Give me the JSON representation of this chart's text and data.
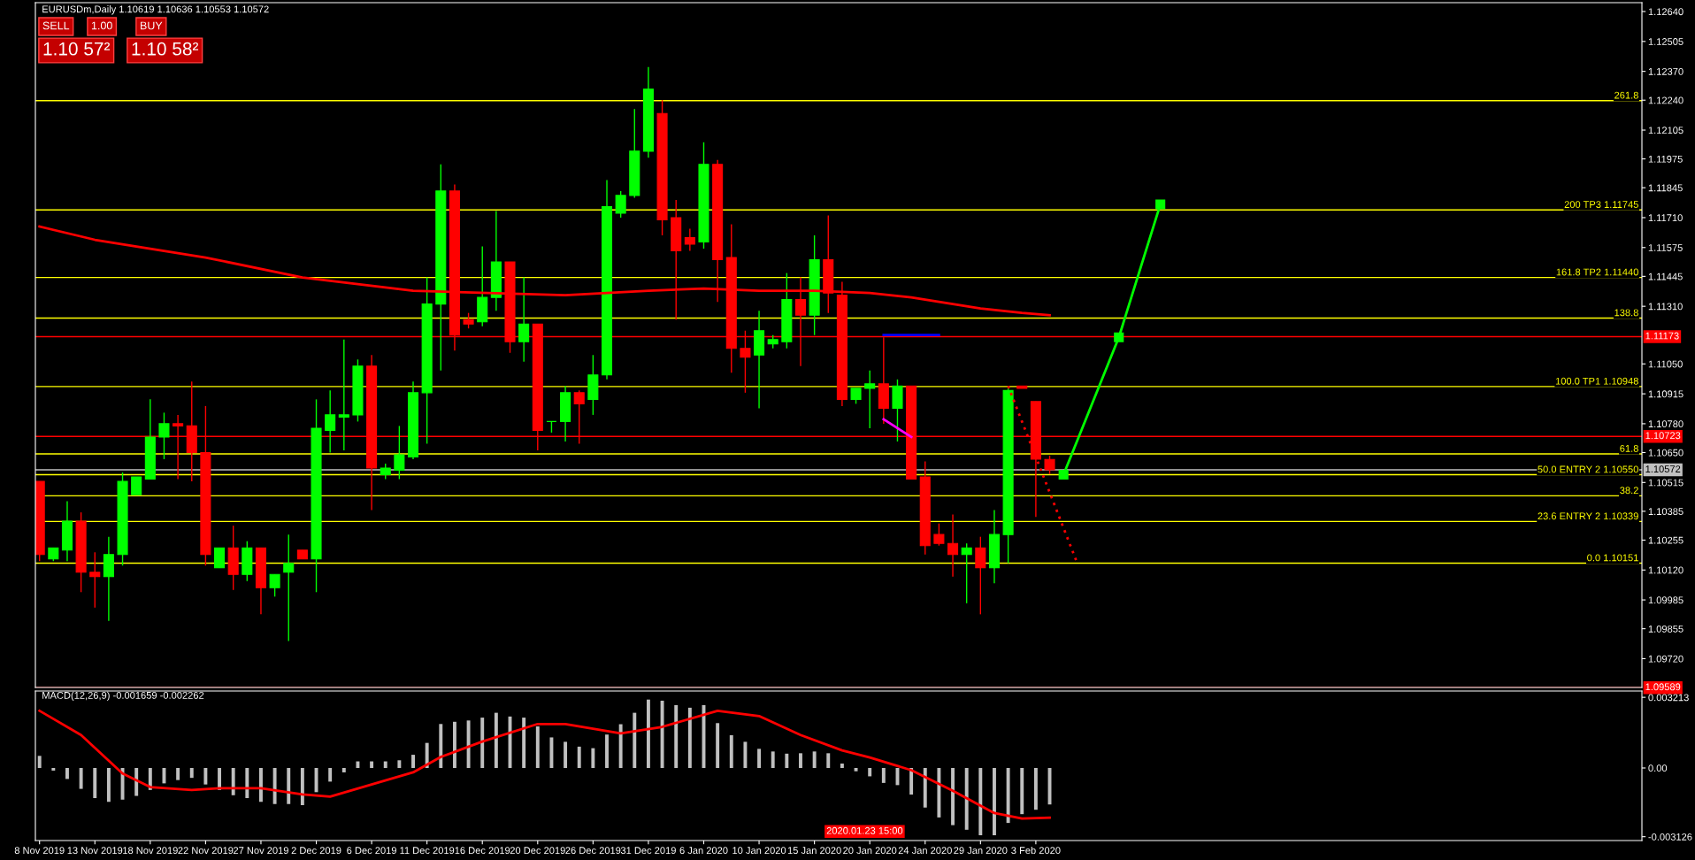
{
  "chart_data": [
    {
      "type": "candlestick",
      "title": "EURUSDm,Daily 1.10619 1.10636 1.10553 1.10572",
      "categories": [
        null,
        null,
        null,
        null,
        null,
        null,
        null,
        null,
        null,
        null,
        null,
        null,
        null,
        null,
        null,
        null,
        null,
        null,
        null,
        null,
        null,
        null,
        null,
        null,
        null,
        null,
        null,
        null,
        null,
        null,
        null,
        null,
        null,
        null,
        null,
        null,
        null,
        null,
        null,
        null,
        null,
        null,
        null,
        null,
        null,
        null,
        null,
        null,
        null,
        null,
        null,
        null,
        null,
        null,
        null,
        null,
        null,
        null,
        null,
        null,
        null,
        null,
        null,
        null,
        null,
        null,
        null,
        null,
        null,
        null,
        null,
        null,
        null,
        null,
        null,
        null,
        null,
        null,
        null,
        null,
        null,
        null,
        null,
        null,
        null,
        null,
        null,
        null,
        null,
        null,
        null,
        null,
        null,
        null,
        null,
        null,
        null,
        null,
        null,
        null,
        null,
        null,
        null,
        null,
        null,
        null,
        null,
        null,
        null,
        null,
        null,
        null,
        null,
        null,
        null,
        null
      ],
      "ohlc": [
        [
          1.1052,
          1.1052,
          1.1016,
          1.1019
        ],
        [
          1.1017,
          1.1022,
          1.1016,
          1.1022
        ],
        [
          1.1021,
          1.1043,
          1.1016,
          1.1034
        ],
        [
          1.1034,
          1.1038,
          1.1002,
          1.1011
        ],
        [
          1.1011,
          1.102,
          1.0995,
          1.1009
        ],
        [
          1.1009,
          1.1027,
          1.0989,
          1.1019
        ],
        [
          1.1019,
          1.1056,
          1.1014,
          1.1052
        ],
        [
          1.1046,
          1.1054,
          1.1046,
          1.1054
        ],
        [
          1.1053,
          1.1089,
          1.1053,
          1.1072
        ],
        [
          1.1072,
          1.1083,
          1.1062,
          1.1078
        ],
        [
          1.1078,
          1.1082,
          1.1053,
          1.1077
        ],
        [
          1.1077,
          1.1097,
          1.1052,
          1.1065
        ],
        [
          1.1065,
          1.1086,
          1.1014,
          1.1019
        ],
        [
          1.1013,
          1.1022,
          1.1013,
          1.1022
        ],
        [
          1.1022,
          1.1032,
          1.1003,
          1.101
        ],
        [
          1.101,
          1.1025,
          1.1007,
          1.1022
        ],
        [
          1.1022,
          1.1022,
          1.0992,
          1.1004
        ],
        [
          1.1004,
          1.101,
          1.1,
          1.101
        ],
        [
          1.1011,
          1.1028,
          1.098,
          1.1015
        ],
        [
          1.1021,
          1.1021,
          1.1017,
          1.1017
        ],
        [
          1.1017,
          1.1089,
          1.1002,
          1.1076
        ],
        [
          1.1075,
          1.1093,
          1.1065,
          1.1082
        ],
        [
          1.1081,
          1.1116,
          1.1066,
          1.1082
        ],
        [
          1.1082,
          1.1107,
          1.1079,
          1.1104
        ],
        [
          1.1104,
          1.1109,
          1.1039,
          1.1058
        ],
        [
          1.1055,
          1.106,
          1.1053,
          1.1058
        ],
        [
          1.1057,
          1.1077,
          1.1053,
          1.1064
        ],
        [
          1.1063,
          1.1097,
          1.1062,
          1.1092
        ],
        [
          1.1092,
          1.1144,
          1.1069,
          1.1132
        ],
        [
          1.1132,
          1.1195,
          1.1102,
          1.1183
        ],
        [
          1.1183,
          1.1186,
          1.1111,
          1.1118
        ],
        [
          1.1125,
          1.1128,
          1.1121,
          1.1123
        ],
        [
          1.1124,
          1.1158,
          1.1122,
          1.1135
        ],
        [
          1.1135,
          1.1174,
          1.1129,
          1.1151
        ],
        [
          1.1151,
          1.1151,
          1.111,
          1.1115
        ],
        [
          1.1115,
          1.1144,
          1.1106,
          1.1123
        ],
        [
          1.1123,
          1.1123,
          1.1066,
          1.1075
        ],
        [
          1.1079,
          1.1079,
          1.1074,
          1.1079
        ],
        [
          1.1079,
          1.1095,
          1.107,
          1.1092
        ],
        [
          1.1092,
          1.1093,
          1.1069,
          1.1087
        ],
        [
          1.1089,
          1.1109,
          1.1082,
          1.11
        ],
        [
          1.11,
          1.1188,
          1.1098,
          1.1176
        ],
        [
          1.1173,
          1.1183,
          1.1171,
          1.1181
        ],
        [
          1.1181,
          1.122,
          1.118,
          1.1201
        ],
        [
          1.1201,
          1.1239,
          1.1198,
          1.1229
        ],
        [
          1.1218,
          1.1224,
          1.1163,
          1.117
        ],
        [
          1.1171,
          1.1179,
          1.1125,
          1.1156
        ],
        [
          1.1162,
          1.1166,
          1.1156,
          1.1159
        ],
        [
          1.116,
          1.1205,
          1.1157,
          1.1195
        ],
        [
          1.1195,
          1.1197,
          1.1133,
          1.1152
        ],
        [
          1.1153,
          1.1168,
          1.1101,
          1.1112
        ],
        [
          1.1112,
          1.112,
          1.1092,
          1.1108
        ],
        [
          1.1109,
          1.1129,
          1.1085,
          1.112
        ],
        [
          1.1114,
          1.1118,
          1.1112,
          1.1116
        ],
        [
          1.1115,
          1.1146,
          1.1112,
          1.1134
        ],
        [
          1.1134,
          1.1144,
          1.1104,
          1.1127
        ],
        [
          1.1127,
          1.1163,
          1.1118,
          1.1152
        ],
        [
          1.1152,
          1.1172,
          1.1128,
          1.1137
        ],
        [
          1.1136,
          1.1142,
          1.1086,
          1.1089
        ],
        [
          1.1089,
          1.1094,
          1.1087,
          1.1094
        ],
        [
          1.1094,
          1.1102,
          1.1076,
          1.1096
        ],
        [
          1.1096,
          1.1117,
          1.1078,
          1.1085
        ],
        [
          1.1085,
          1.1098,
          1.107,
          1.1095
        ],
        [
          1.1095,
          1.1095,
          1.1053,
          1.1053
        ],
        [
          1.1054,
          1.1061,
          1.1019,
          1.1023
        ],
        [
          1.1028,
          1.1033,
          1.1023,
          1.1024
        ],
        [
          1.1024,
          1.1037,
          1.1009,
          1.1019
        ],
        [
          1.1019,
          1.1024,
          1.0997,
          1.1022
        ],
        [
          1.1022,
          1.1027,
          1.0992,
          1.1013
        ],
        [
          1.1013,
          1.1039,
          1.1006,
          1.1028
        ],
        [
          1.1028,
          1.10948,
          1.10151,
          1.1093
        ],
        [
          1.1095,
          1.1095,
          1.1094,
          1.1094
        ],
        [
          1.1088,
          1.1088,
          1.1036,
          1.1062
        ],
        [
          1.10619,
          1.10636,
          1.10553,
          1.10572
        ],
        null,
        null,
        null,
        null,
        null,
        null,
        null,
        null,
        null,
        null,
        null,
        null,
        null,
        null,
        null,
        null,
        null,
        null,
        null,
        null,
        null,
        null,
        null,
        null,
        null,
        null,
        null,
        null,
        null,
        null,
        null,
        null,
        null,
        null,
        null,
        null,
        null,
        null,
        null,
        null,
        null,
        null
      ],
      "colors": [
        "#ff0000",
        "#00ff00",
        "#00ff00",
        "#ff0000",
        "#ff0000",
        "#00ff00",
        "#00ff00",
        "#00ff00",
        "#00ff00",
        "#00ff00",
        "#ff0000",
        "#ff0000",
        "#ff0000",
        "#00ff00",
        "#ff0000",
        "#00ff00",
        "#ff0000",
        "#00ff00",
        "#00ff00",
        "#ff0000",
        "#00ff00",
        "#00ff00",
        "#00ff00",
        "#00ff00",
        "#ff0000",
        "#00ff00",
        "#00ff00",
        "#00ff00",
        "#00ff00",
        "#00ff00",
        "#ff0000",
        "#ff0000",
        "#00ff00",
        "#00ff00",
        "#ff0000",
        "#00ff00",
        "#ff0000",
        "#00ff00",
        "#00ff00",
        "#ff0000",
        "#00ff00",
        "#00ff00",
        "#00ff00",
        "#00ff00",
        "#00ff00",
        "#ff0000",
        "#ff0000",
        "#ff0000",
        "#00ff00",
        "#ff0000",
        "#ff0000",
        "#ff0000",
        "#00ff00",
        "#00ff00",
        "#00ff00",
        "#ff0000",
        "#00ff00",
        "#ff0000",
        "#ff0000",
        "#00ff00",
        "#00ff00",
        "#ff0000",
        "#00ff00",
        "#ff0000",
        "#ff0000",
        "#ff0000",
        "#ff0000",
        "#00ff00",
        "#ff0000",
        "#00ff00",
        "#00ff00",
        "#ff0000",
        "#ff0000",
        "#ff0000",
        null,
        null,
        null,
        null,
        null,
        null,
        null,
        null,
        null,
        null,
        null,
        null,
        null,
        null,
        null,
        null,
        null,
        null,
        null,
        null,
        null,
        null,
        null,
        null,
        null,
        null,
        null,
        null,
        null,
        null,
        null,
        null,
        null,
        null,
        null,
        null,
        null,
        null,
        null,
        null,
        null,
        null
      ],
      "series": [
        {
          "type": "line",
          "color": "#ff0000",
          "values": [
            1.1167,
            null,
            null,
            null,
            1.1161,
            null,
            null,
            null,
            null,
            null,
            null,
            null,
            1.1153,
            null,
            null,
            null,
            null,
            null,
            null,
            1.1144,
            null,
            null,
            null,
            null,
            null,
            null,
            null,
            1.1138,
            null,
            null,
            null,
            null,
            null,
            null,
            null,
            null,
            null,
            null,
            1.1136,
            null,
            null,
            1.1137,
            null,
            null,
            1.1138,
            null,
            null,
            null,
            1.1139,
            null,
            null,
            null,
            1.1138,
            null,
            null,
            null,
            1.1138,
            null,
            null,
            null,
            1.1137,
            null,
            null,
            1.1135,
            null,
            1.1133,
            null,
            null,
            1.113,
            null,
            null,
            1.1128,
            null,
            1.1127,
            null,
            null,
            null,
            null,
            null,
            null,
            null,
            null,
            null,
            null,
            null,
            null,
            null,
            null,
            null,
            null,
            null,
            null,
            null,
            null,
            null,
            null,
            null,
            null,
            null,
            null,
            null,
            null,
            null,
            null,
            null,
            null,
            null,
            null,
            null,
            null,
            null,
            null,
            null,
            null,
            null,
            null
          ]
        },
        {
          "type": "line",
          "color": "#0000ff",
          "values": [
            null,
            null,
            null,
            null,
            null,
            null,
            null,
            null,
            null,
            null,
            null,
            null,
            null,
            null,
            null,
            null,
            null,
            null,
            null,
            null,
            null,
            null,
            null,
            null,
            null,
            null,
            null,
            null,
            null,
            null,
            null,
            null,
            null,
            null,
            null,
            null,
            null,
            null,
            null,
            null,
            null,
            null,
            null,
            null,
            null,
            null,
            null,
            null,
            null,
            null,
            null,
            null,
            null,
            null,
            null,
            null,
            null,
            null,
            null,
            null,
            null,
            1.1118,
            null,
            null,
            null,
            1.1118,
            null,
            null,
            null,
            null,
            null,
            null,
            null,
            null,
            null,
            null,
            null,
            null,
            null,
            null,
            null,
            null,
            null,
            null,
            null,
            null,
            null,
            null,
            null,
            null,
            null,
            null,
            null,
            null,
            null,
            null,
            null,
            null,
            null,
            null,
            null,
            null,
            null,
            null,
            null,
            null,
            null,
            null,
            null,
            null,
            null,
            null,
            null,
            null,
            null,
            null
          ]
        },
        {
          "type": "line",
          "color": "#ff00ff",
          "values": [
            null,
            null,
            null,
            null,
            null,
            null,
            null,
            null,
            null,
            null,
            null,
            null,
            null,
            null,
            null,
            null,
            null,
            null,
            null,
            null,
            null,
            null,
            null,
            null,
            null,
            null,
            null,
            null,
            null,
            null,
            null,
            null,
            null,
            null,
            null,
            null,
            null,
            null,
            null,
            null,
            null,
            null,
            null,
            null,
            null,
            null,
            null,
            null,
            null,
            null,
            null,
            null,
            null,
            null,
            null,
            null,
            null,
            null,
            null,
            null,
            null,
            1.108,
            null,
            1.1072,
            null,
            null,
            null,
            null,
            null,
            null,
            null,
            null,
            null,
            null,
            null,
            null,
            null,
            null,
            null,
            null,
            null,
            null,
            null,
            null,
            null,
            null,
            null,
            null,
            null,
            null,
            null,
            null,
            null,
            null,
            null,
            null,
            null,
            null,
            null,
            null,
            null,
            null,
            null,
            null,
            null,
            null,
            null,
            null,
            null,
            null,
            null,
            null,
            null,
            null,
            null,
            null
          ]
        },
        {
          "type": "line",
          "color": "#ff0000",
          "line_style": "dotted",
          "values": [
            null,
            null,
            null,
            null,
            null,
            null,
            null,
            null,
            null,
            null,
            null,
            null,
            null,
            null,
            null,
            null,
            null,
            null,
            null,
            null,
            null,
            null,
            null,
            null,
            null,
            null,
            null,
            null,
            null,
            null,
            null,
            null,
            null,
            null,
            null,
            null,
            null,
            null,
            null,
            null,
            null,
            null,
            null,
            null,
            null,
            null,
            null,
            null,
            null,
            null,
            null,
            null,
            null,
            null,
            null,
            null,
            null,
            null,
            null,
            null,
            null,
            null,
            null,
            null,
            null,
            null,
            null,
            null,
            null,
            null,
            1.1095,
            null,
            null,
            null,
            null,
            1.1015,
            null,
            null,
            null,
            null,
            null,
            null,
            null,
            null,
            null,
            null,
            null,
            null,
            null,
            null,
            null,
            null,
            null,
            null,
            null,
            null,
            null,
            null,
            null,
            null,
            null,
            null,
            null,
            null,
            null,
            null,
            null,
            null,
            null,
            null,
            null,
            null,
            null,
            null,
            null,
            null
          ]
        },
        {
          "type": "line",
          "color": "#00ff00",
          "marker": "square",
          "values": [
            null,
            null,
            null,
            null,
            null,
            null,
            null,
            null,
            null,
            null,
            null,
            null,
            null,
            null,
            null,
            null,
            null,
            null,
            null,
            null,
            null,
            null,
            null,
            null,
            null,
            null,
            null,
            null,
            null,
            null,
            null,
            null,
            null,
            null,
            null,
            null,
            null,
            null,
            null,
            null,
            null,
            null,
            null,
            null,
            null,
            null,
            null,
            null,
            null,
            null,
            null,
            null,
            null,
            null,
            null,
            null,
            null,
            null,
            null,
            null,
            null,
            null,
            null,
            null,
            null,
            null,
            null,
            null,
            null,
            null,
            null,
            null,
            null,
            null,
            1.1055,
            null,
            null,
            null,
            1.1117,
            null,
            null,
            1.1177,
            null,
            null,
            null,
            null,
            null,
            null,
            null,
            null,
            null,
            null,
            null,
            null,
            null,
            null,
            null,
            null,
            null,
            null,
            null,
            null,
            null,
            null,
            null,
            null,
            null,
            null,
            null,
            null,
            null,
            null,
            null,
            null,
            null,
            null
          ]
        }
      ],
      "ylim": [
        1.0959,
        1.1268
      ],
      "yticks": [
        {
          "value": 1.1264,
          "label": "1.12640"
        },
        {
          "value": 1.12505,
          "label": "1.12505"
        },
        {
          "value": 1.1237,
          "label": "1.12370"
        },
        {
          "value": 1.1224,
          "label": "1.12240"
        },
        {
          "value": 1.12105,
          "label": "1.12105"
        },
        {
          "value": 1.11975,
          "label": "1.11975"
        },
        {
          "value": 1.11845,
          "label": "1.11845"
        },
        {
          "value": 1.1171,
          "label": "1.11710"
        },
        {
          "value": 1.11575,
          "label": "1.11575"
        },
        {
          "value": 1.11445,
          "label": "1.11445"
        },
        {
          "value": 1.1131,
          "label": "1.11310"
        },
        {
          "value": 1.1105,
          "label": "1.11050"
        },
        {
          "value": 1.10915,
          "label": "1.10915"
        },
        {
          "value": 1.1078,
          "label": "1.10780"
        },
        {
          "value": 1.1065,
          "label": "1.10650"
        },
        {
          "value": 1.10515,
          "label": "1.10515"
        },
        {
          "value": 1.10385,
          "label": "1.10385"
        },
        {
          "value": 1.10255,
          "label": "1.10255"
        },
        {
          "value": 1.1012,
          "label": "1.10120"
        },
        {
          "value": 1.09985,
          "label": "1.09985"
        },
        {
          "value": 1.09855,
          "label": "1.09855"
        },
        {
          "value": 1.0972,
          "label": "1.09720"
        }
      ],
      "tick_labels": "y",
      "ref_lines": [
        {
          "axis": "y",
          "value": 1.11173,
          "label": "1.11173",
          "color": "#ff0000"
        },
        {
          "axis": "y",
          "value": 1.10723,
          "label": "1.10723",
          "color": "#ff0000"
        },
        {
          "axis": "y",
          "value": 1.10572,
          "label": "1.10572",
          "color": "#c0c0c0"
        },
        {
          "axis": "y",
          "value": 1.09589,
          "label": "1.09589",
          "color": "#ff0000"
        },
        {
          "axis": "y",
          "value": 1.12238,
          "color": "#ffff00"
        },
        {
          "axis": "y",
          "value": 1.11745,
          "color": "#ffff00"
        },
        {
          "axis": "y",
          "value": 1.1144,
          "color": "#ffff00"
        },
        {
          "axis": "y",
          "value": 1.11257,
          "color": "#ffff00"
        },
        {
          "axis": "y",
          "value": 1.10948,
          "color": "#ffff00"
        },
        {
          "axis": "y",
          "value": 1.10644,
          "color": "#ffff00"
        },
        {
          "axis": "y",
          "value": 1.1055,
          "color": "#ffff00"
        },
        {
          "axis": "y",
          "value": 1.10455,
          "color": "#ffff00"
        },
        {
          "axis": "y",
          "value": 1.10339,
          "color": "#ffff00"
        },
        {
          "axis": "y",
          "value": 1.10151,
          "color": "#ffff00"
        }
      ],
      "annotations": [
        "SELL",
        "1.00",
        "BUY",
        "1.10 57²",
        "1.10 58²",
        {
          "text": "261.8",
          "y": 1.12238
        },
        {
          "text": "200 TP3 1.11745",
          "y": 1.11745
        },
        {
          "text": "161.8 TP2 1.11440",
          "y": 1.1144
        },
        {
          "text": "138.8",
          "y": 1.11257
        },
        {
          "text": "100.0 TP1 1.10948",
          "y": 1.10948
        },
        {
          "text": "61.8",
          "y": 1.10644
        },
        {
          "text": "50.0 ENTRY 2 1.10550",
          "y": 1.1055
        },
        {
          "text": "38.2",
          "y": 1.10455
        },
        {
          "text": "23.6 ENTRY 2 1.10339",
          "y": 1.10339
        },
        {
          "text": "0.0 1.10151",
          "y": 1.10151
        }
      ]
    },
    {
      "type": "bar",
      "title": "MACD(12,26,9) -0.001659 -0.002262",
      "categories": [
        "8 Nov 2019",
        null,
        null,
        null,
        "13 Nov 2019",
        null,
        null,
        null,
        "18 Nov 2019",
        null,
        null,
        null,
        "22 Nov 2019",
        null,
        null,
        null,
        "27 Nov 2019",
        null,
        null,
        null,
        "2 Dec 2019",
        null,
        null,
        null,
        "6 Dec 2019",
        null,
        null,
        null,
        "11 Dec 2019",
        null,
        null,
        null,
        "16 Dec 2019",
        null,
        null,
        null,
        "20 Dec 2019",
        null,
        null,
        null,
        "26 Dec 2019",
        null,
        null,
        null,
        "31 Dec 2019",
        null,
        null,
        null,
        "6 Jan 2020",
        null,
        null,
        null,
        "10 Jan 2020",
        null,
        null,
        null,
        "15 Jan 2020",
        null,
        null,
        null,
        "20 Jan 2020",
        null,
        null,
        null,
        "24 Jan 2020",
        null,
        null,
        null,
        "29 Jan 2020",
        null,
        null,
        null,
        "3 Feb 2020",
        null,
        null,
        null,
        null,
        null,
        null,
        null,
        null,
        null,
        null,
        null,
        null,
        null,
        null,
        null,
        null,
        null,
        null,
        null,
        null,
        null,
        null,
        null,
        null,
        null,
        null,
        null,
        null,
        null,
        null,
        null,
        null,
        null,
        null,
        null,
        null,
        null,
        null,
        null,
        null,
        null,
        null,
        null
      ],
      "series": [
        {
          "type": "bar",
          "color": "#c0c0c0",
          "values": [
            0.00055,
            -0.00012,
            -0.0005,
            -0.00095,
            -0.00137,
            -0.00154,
            -0.00144,
            -0.00127,
            -0.001,
            -0.0007,
            -0.00055,
            -0.00045,
            -0.00075,
            -0.001,
            -0.00124,
            -0.00137,
            -0.00154,
            -0.00164,
            -0.00164,
            -0.00169,
            -0.0011,
            -0.00062,
            -0.0002,
            0.0003,
            0.0003,
            0.0003,
            0.00035,
            0.0006,
            0.00114,
            0.002,
            0.0021,
            0.00216,
            0.00229,
            0.00251,
            0.00234,
            0.00229,
            0.00189,
            0.00139,
            0.00119,
            0.00097,
            0.0009,
            0.00152,
            0.00199,
            0.00251,
            0.00311,
            0.00306,
            0.00286,
            0.00274,
            0.00286,
            0.00204,
            0.00149,
            0.00119,
            0.00087,
            0.00075,
            0.00065,
            0.00067,
            0.00075,
            0.00067,
            0.0002,
            -0.00015,
            -0.00038,
            -0.00068,
            -0.00078,
            -0.00121,
            -0.0018,
            -0.00225,
            -0.0026,
            -0.00281,
            -0.00306,
            -0.00306,
            -0.0025,
            -0.0021,
            -0.0019,
            -0.00166,
            null,
            null,
            null,
            null,
            null,
            null,
            null,
            null,
            null,
            null,
            null,
            null,
            null,
            null,
            null,
            null,
            null,
            null,
            null,
            null,
            null,
            null,
            null,
            null,
            null,
            null,
            null,
            null,
            null,
            null,
            null,
            null,
            null,
            null,
            null,
            null,
            null,
            null,
            null,
            null,
            null,
            null
          ]
        },
        {
          "type": "line",
          "color": "#ff0000",
          "values": [
            0.0026,
            null,
            null,
            0.0015,
            null,
            null,
            -0.00025,
            null,
            -0.00087,
            null,
            null,
            -0.001,
            null,
            -0.00092,
            null,
            null,
            -0.00092,
            null,
            null,
            -0.0012,
            null,
            -0.0013,
            null,
            null,
            -0.00075,
            null,
            null,
            -0.0002,
            null,
            0.0005,
            null,
            null,
            0.0012,
            null,
            null,
            null,
            0.002,
            null,
            0.002,
            null,
            null,
            null,
            0.00157,
            null,
            null,
            0.00187,
            null,
            null,
            null,
            0.0026,
            null,
            null,
            0.00236,
            null,
            null,
            0.0015,
            null,
            null,
            0.0008,
            null,
            0.00048,
            null,
            null,
            -0.0001,
            null,
            null,
            -0.00104,
            null,
            null,
            -0.00205,
            null,
            -0.0023,
            null,
            -0.00226,
            null,
            null,
            null,
            null,
            null,
            null,
            null,
            null,
            null,
            null,
            null,
            null,
            null,
            null,
            null,
            null,
            null,
            null,
            null,
            null,
            null,
            null,
            null,
            null,
            null,
            null,
            null,
            null,
            null,
            null,
            null,
            null,
            null,
            null,
            null,
            null,
            null,
            null,
            null,
            null,
            null,
            null
          ]
        }
      ],
      "ylim": [
        -0.0033,
        0.0035
      ],
      "yticks": [
        {
          "value": 0.003213,
          "label": "0.003213"
        },
        {
          "value": 0,
          "label": "0.00"
        },
        {
          "value": -0.003126,
          "label": "-0.003126"
        }
      ],
      "annotations": [
        "2020.01.23 15:00"
      ]
    }
  ]
}
